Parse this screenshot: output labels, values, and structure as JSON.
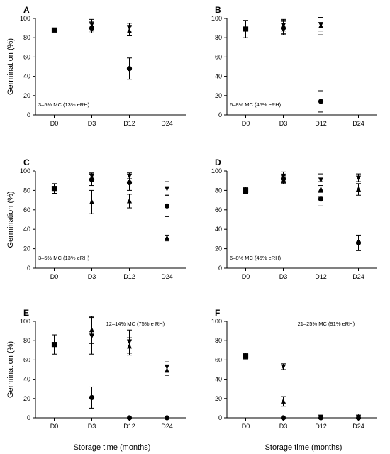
{
  "chart_data": [
    {
      "panel": "A",
      "type": "scatter",
      "annotation": "3–5% MC (13% eRH)",
      "annotation_pos": "bottom-left",
      "categories": [
        "D0",
        "D3",
        "D12",
        "D24"
      ],
      "ylabel": "Germination (%)",
      "xlabel": "",
      "ylim": [
        0,
        100
      ],
      "yticks": [
        0,
        20,
        40,
        60,
        80,
        100
      ],
      "series": [
        {
          "marker": "square",
          "points": [
            {
              "x": "D0",
              "y": 88,
              "err": 1
            }
          ]
        },
        {
          "marker": "circle",
          "points": [
            {
              "x": "D3",
              "y": 90,
              "err": 5
            },
            {
              "x": "D12",
              "y": 48,
              "err": 11
            }
          ]
        },
        {
          "marker": "triangle-up",
          "points": [
            {
              "x": "D3",
              "y": 92,
              "err": 5
            },
            {
              "x": "D12",
              "y": 87,
              "err": 5
            }
          ]
        },
        {
          "marker": "triangle-down",
          "points": [
            {
              "x": "D3",
              "y": 94,
              "err": 5
            },
            {
              "x": "D12",
              "y": 91,
              "err": 4
            }
          ]
        }
      ]
    },
    {
      "panel": "B",
      "type": "scatter",
      "annotation": "6–8% MC (45% eRH)",
      "annotation_pos": "bottom-left",
      "categories": [
        "D0",
        "D3",
        "D12",
        "D24"
      ],
      "ylabel": "",
      "xlabel": "",
      "ylim": [
        0,
        100
      ],
      "yticks": [
        0,
        20,
        40,
        60,
        80,
        100
      ],
      "series": [
        {
          "marker": "square",
          "points": [
            {
              "x": "D0",
              "y": 89,
              "err": 9
            }
          ]
        },
        {
          "marker": "circle",
          "points": [
            {
              "x": "D3",
              "y": 90,
              "err": 7
            },
            {
              "x": "D12",
              "y": 14,
              "err": 11
            }
          ]
        },
        {
          "marker": "triangle-up",
          "points": [
            {
              "x": "D3",
              "y": 91,
              "err": 7
            },
            {
              "x": "D12",
              "y": 92,
              "err": 9
            }
          ]
        },
        {
          "marker": "triangle-down",
          "points": [
            {
              "x": "D3",
              "y": 93,
              "err": 6
            },
            {
              "x": "D12",
              "y": 94,
              "err": 7
            }
          ]
        }
      ]
    },
    {
      "panel": "C",
      "type": "scatter",
      "annotation": "3–5% MC (13% eRH)",
      "annotation_pos": "bottom-left",
      "categories": [
        "D0",
        "D3",
        "D12",
        "D24"
      ],
      "ylabel": "Germination (%)",
      "xlabel": "",
      "ylim": [
        0,
        100
      ],
      "yticks": [
        0,
        20,
        40,
        60,
        80,
        100
      ],
      "series": [
        {
          "marker": "square",
          "points": [
            {
              "x": "D0",
              "y": 82,
              "err": 5
            }
          ]
        },
        {
          "marker": "circle",
          "points": [
            {
              "x": "D3",
              "y": 91,
              "err": 6
            },
            {
              "x": "D12",
              "y": 88,
              "err": 8
            },
            {
              "x": "D24",
              "y": 64,
              "err": 11
            }
          ]
        },
        {
          "marker": "triangle-up",
          "points": [
            {
              "x": "D3",
              "y": 68,
              "err": 12
            },
            {
              "x": "D12",
              "y": 69,
              "err": 7
            },
            {
              "x": "D24",
              "y": 31,
              "err": 3
            }
          ]
        },
        {
          "marker": "triangle-down",
          "points": [
            {
              "x": "D3",
              "y": 95,
              "err": 3
            },
            {
              "x": "D12",
              "y": 95,
              "err": 3
            },
            {
              "x": "D24",
              "y": 82,
              "err": 7
            }
          ]
        }
      ]
    },
    {
      "panel": "D",
      "type": "scatter",
      "annotation": "6–8% MC (45% eRH)",
      "annotation_pos": "bottom-left",
      "categories": [
        "D0",
        "D3",
        "D12",
        "D24"
      ],
      "ylabel": "",
      "xlabel": "",
      "ylim": [
        0,
        100
      ],
      "yticks": [
        0,
        20,
        40,
        60,
        80,
        100
      ],
      "series": [
        {
          "marker": "square",
          "points": [
            {
              "x": "D0",
              "y": 80,
              "err": 3
            }
          ]
        },
        {
          "marker": "circle",
          "points": [
            {
              "x": "D3",
              "y": 92,
              "err": 4
            },
            {
              "x": "D12",
              "y": 71,
              "err": 7
            },
            {
              "x": "D24",
              "y": 26,
              "err": 8
            }
          ]
        },
        {
          "marker": "triangle-up",
          "points": [
            {
              "x": "D3",
              "y": 91,
              "err": 4
            },
            {
              "x": "D12",
              "y": 81,
              "err": 8
            },
            {
              "x": "D24",
              "y": 81,
              "err": 6
            }
          ]
        },
        {
          "marker": "triangle-down",
          "points": [
            {
              "x": "D3",
              "y": 95,
              "err": 4
            },
            {
              "x": "D12",
              "y": 91,
              "err": 6
            },
            {
              "x": "D24",
              "y": 93,
              "err": 4
            }
          ]
        }
      ]
    },
    {
      "panel": "E",
      "type": "scatter",
      "annotation": "12–14% MC (75% e RH)",
      "annotation_pos": "top-right",
      "categories": [
        "D0",
        "D3",
        "D12",
        "D24"
      ],
      "ylabel": "Germination (%)",
      "xlabel": "Storage time (months)",
      "ylim": [
        0,
        100
      ],
      "yticks": [
        0,
        20,
        40,
        60,
        80,
        100
      ],
      "series": [
        {
          "marker": "square",
          "points": [
            {
              "x": "D0",
              "y": 76,
              "err": 10
            }
          ]
        },
        {
          "marker": "circle",
          "points": [
            {
              "x": "D3",
              "y": 21,
              "err": 11
            },
            {
              "x": "D12",
              "y": 0,
              "err": 0
            },
            {
              "x": "D24",
              "y": 0,
              "err": 0
            }
          ]
        },
        {
          "marker": "triangle-up",
          "points": [
            {
              "x": "D3",
              "y": 91,
              "err": 14
            },
            {
              "x": "D12",
              "y": 74,
              "err": 9
            },
            {
              "x": "D24",
              "y": 49,
              "err": 5
            }
          ]
        },
        {
          "marker": "triangle-down",
          "points": [
            {
              "x": "D3",
              "y": 85,
              "err": 19
            },
            {
              "x": "D12",
              "y": 79,
              "err": 12
            },
            {
              "x": "D24",
              "y": 53,
              "err": 5
            }
          ]
        }
      ]
    },
    {
      "panel": "F",
      "type": "scatter",
      "annotation": "21–25% MC (91% eRH)",
      "annotation_pos": "top-right",
      "categories": [
        "D0",
        "D3",
        "D12",
        "D24"
      ],
      "ylabel": "",
      "xlabel": "Storage time (months)",
      "ylim": [
        0,
        100
      ],
      "yticks": [
        0,
        20,
        40,
        60,
        80,
        100
      ],
      "series": [
        {
          "marker": "square",
          "points": [
            {
              "x": "D0",
              "y": 64,
              "err": 3
            }
          ]
        },
        {
          "marker": "circle",
          "points": [
            {
              "x": "D3",
              "y": 0,
              "err": 0
            },
            {
              "x": "D12",
              "y": 0,
              "err": 0
            },
            {
              "x": "D24",
              "y": 0,
              "err": 0
            }
          ]
        },
        {
          "marker": "triangle-up",
          "points": [
            {
              "x": "D3",
              "y": 17,
              "err": 5
            },
            {
              "x": "D12",
              "y": 1,
              "err": 1
            },
            {
              "x": "D24",
              "y": 1,
              "err": 1
            }
          ]
        },
        {
          "marker": "triangle-down",
          "points": [
            {
              "x": "D3",
              "y": 53,
              "err": 3
            },
            {
              "x": "D12",
              "y": 1,
              "err": 1
            },
            {
              "x": "D24",
              "y": 1,
              "err": 1
            }
          ]
        }
      ]
    }
  ]
}
